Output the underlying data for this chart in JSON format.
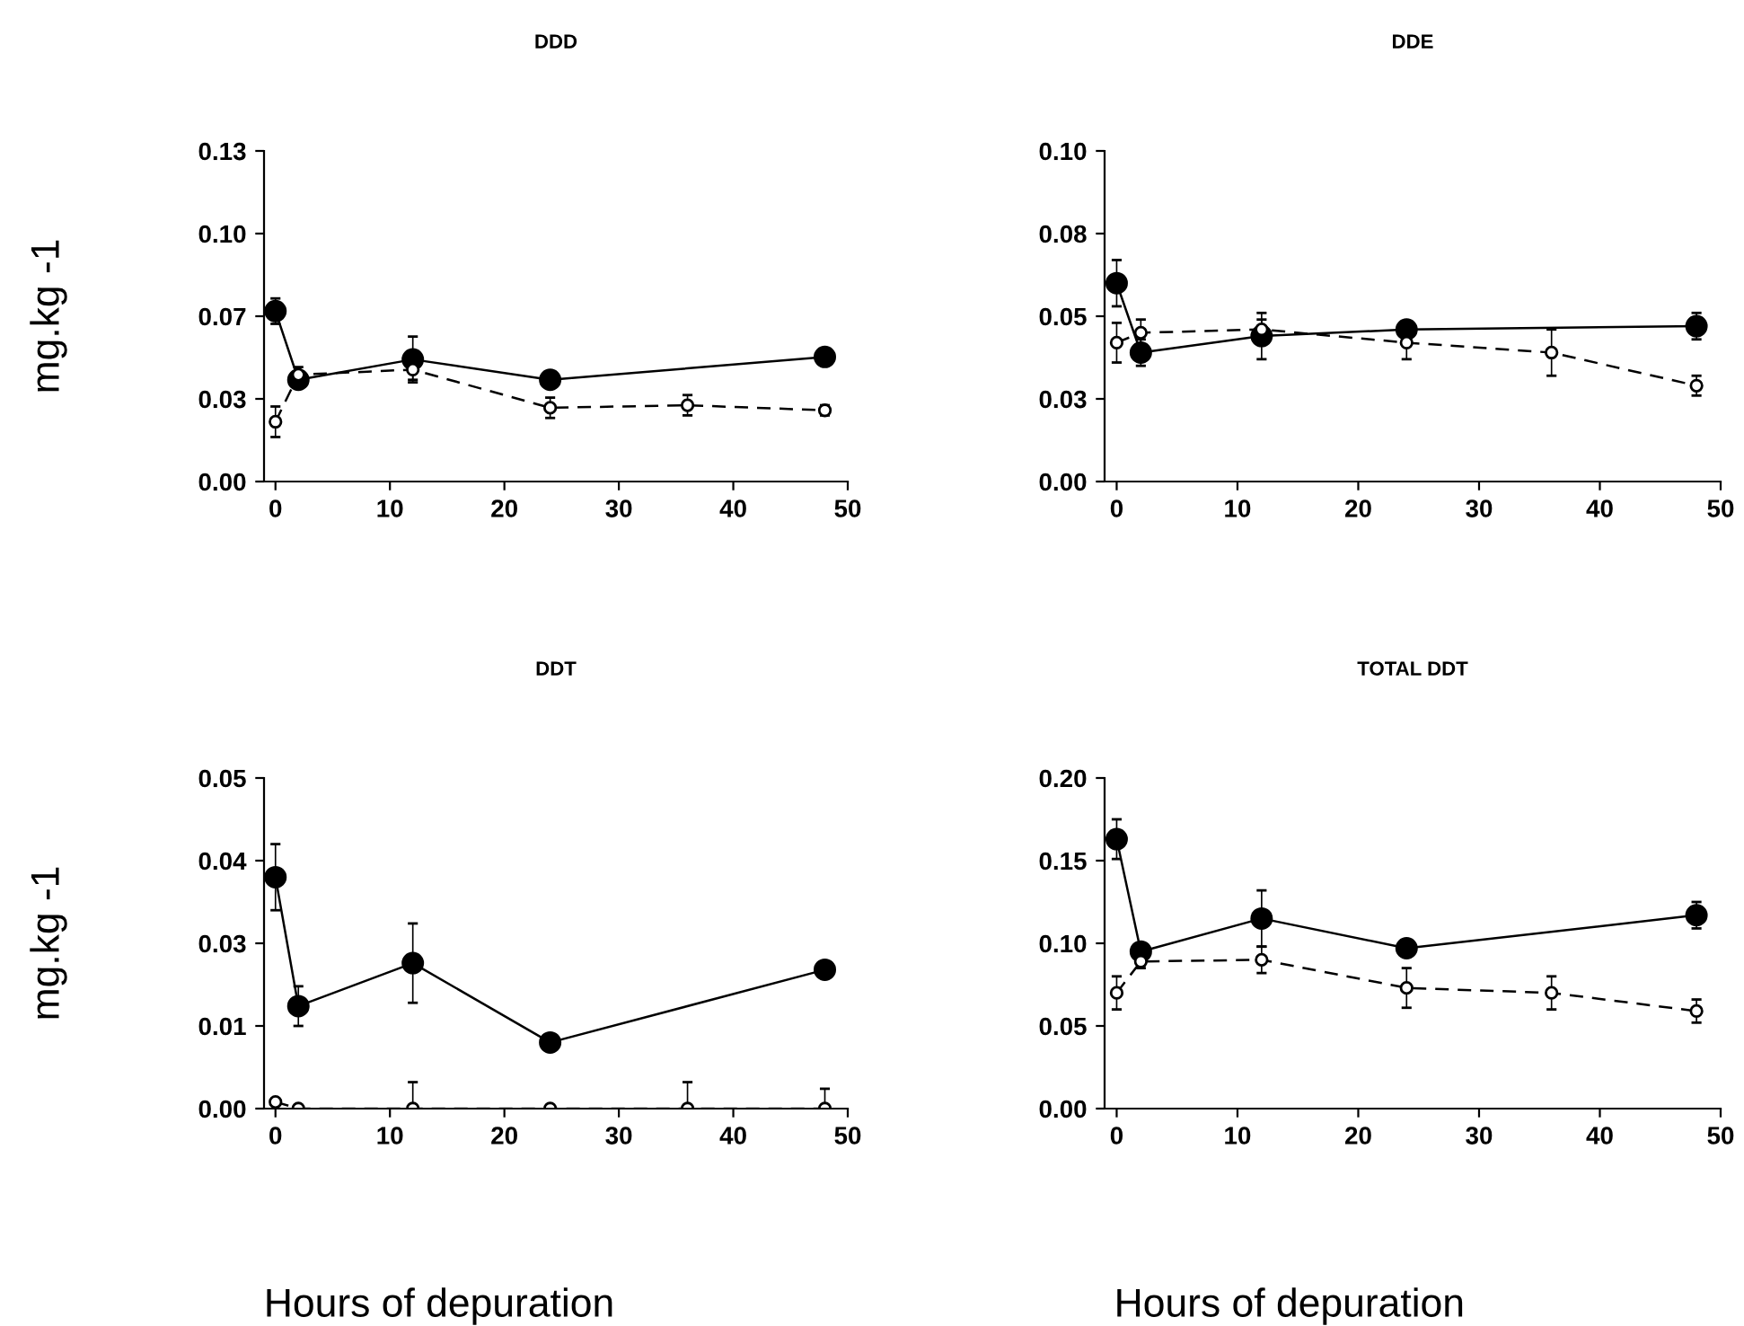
{
  "chart_data": [
    {
      "type": "line",
      "title": "DDD",
      "ylabel": "mg.kg -1",
      "xlim": [
        -1,
        50
      ],
      "xticks": [
        0,
        10,
        20,
        30,
        40,
        50
      ],
      "ylim": [
        0,
        0.13
      ],
      "yticks": [
        {
          "value": 0,
          "label": "0.00"
        },
        {
          "value": 0.0325,
          "label": "0.03"
        },
        {
          "value": 0.065,
          "label": "0.07"
        },
        {
          "value": 0.0975,
          "label": "0.10"
        },
        {
          "value": 0.13,
          "label": "0.13"
        }
      ],
      "grid": false,
      "marker": "circle",
      "series": [
        {
          "color": "#000000",
          "line_style": "solid",
          "x": [
            0,
            2,
            12,
            24,
            48
          ],
          "values": [
            0.067,
            0.04,
            0.048,
            0.04,
            0.049
          ],
          "errors": [
            0.005,
            0.003,
            0.009,
            0.003,
            0.003
          ]
        },
        {
          "color": "#000000",
          "line_style": "dashed",
          "x": [
            0,
            2,
            12,
            24,
            36,
            48
          ],
          "values": [
            0.0235,
            0.042,
            0.044,
            0.029,
            0.03,
            0.028
          ],
          "errors": [
            0.006,
            0.003,
            0.004,
            0.004,
            0.004,
            0.002
          ]
        }
      ]
    },
    {
      "type": "line",
      "title": "DDE",
      "xlim": [
        -1,
        50
      ],
      "xticks": [
        0,
        10,
        20,
        30,
        40,
        50
      ],
      "ylim": [
        0,
        0.1
      ],
      "yticks": [
        {
          "value": 0,
          "label": "0.00"
        },
        {
          "value": 0.025,
          "label": "0.03"
        },
        {
          "value": 0.05,
          "label": "0.05"
        },
        {
          "value": 0.075,
          "label": "0.08"
        },
        {
          "value": 0.1,
          "label": "0.10"
        }
      ],
      "grid": false,
      "marker": "circle",
      "series": [
        {
          "color": "#000000",
          "line_style": "solid",
          "x": [
            0,
            2,
            12,
            24,
            48
          ],
          "values": [
            0.06,
            0.039,
            0.044,
            0.046,
            0.047
          ],
          "errors": [
            0.007,
            0.004,
            0.007,
            0.002,
            0.004
          ]
        },
        {
          "color": "#000000",
          "line_style": "dashed",
          "x": [
            0,
            2,
            12,
            24,
            36,
            48
          ],
          "values": [
            0.042,
            0.045,
            0.046,
            0.042,
            0.039,
            0.029
          ],
          "errors": [
            0.006,
            0.004,
            0.003,
            0.005,
            0.007,
            0.003
          ]
        }
      ]
    },
    {
      "type": "line",
      "title": "DDT",
      "ylabel": "mg.kg -1",
      "xlabel": "Hours of depuration",
      "xlim": [
        -1,
        50
      ],
      "xticks": [
        0,
        10,
        20,
        30,
        40,
        50
      ],
      "ylim": [
        0,
        0.05
      ],
      "yticks": [
        {
          "value": 0,
          "label": "0.00"
        },
        {
          "value": 0.0125,
          "label": "0.01"
        },
        {
          "value": 0.025,
          "label": "0.03"
        },
        {
          "value": 0.0375,
          "label": "0.04"
        },
        {
          "value": 0.05,
          "label": "0.05"
        }
      ],
      "grid": false,
      "marker": "circle",
      "series": [
        {
          "color": "#000000",
          "line_style": "solid",
          "x": [
            0,
            2,
            12,
            24,
            48
          ],
          "values": [
            0.035,
            0.0155,
            0.022,
            0.01,
            0.021
          ],
          "errors": [
            0.005,
            0.003,
            0.006,
            null,
            null
          ]
        },
        {
          "color": "#000000",
          "line_style": "dashed",
          "x": [
            0,
            2,
            12,
            24,
            36,
            48
          ],
          "values": [
            0.001,
            0,
            0,
            0,
            0,
            0
          ],
          "errors": [
            null,
            null,
            0.004,
            null,
            0.004,
            0.003
          ]
        }
      ]
    },
    {
      "type": "line",
      "title": "TOTAL DDT",
      "xlabel": "Hours of depuration",
      "xlim": [
        -1,
        50
      ],
      "xticks": [
        0,
        10,
        20,
        30,
        40,
        50
      ],
      "ylim": [
        0,
        0.2
      ],
      "yticks": [
        {
          "value": 0,
          "label": "0.00"
        },
        {
          "value": 0.05,
          "label": "0.05"
        },
        {
          "value": 0.1,
          "label": "0.10"
        },
        {
          "value": 0.15,
          "label": "0.15"
        },
        {
          "value": 0.2,
          "label": "0.20"
        }
      ],
      "grid": false,
      "marker": "circle",
      "series": [
        {
          "color": "#000000",
          "line_style": "solid",
          "x": [
            0,
            2,
            12,
            24,
            48
          ],
          "values": [
            0.163,
            0.095,
            0.115,
            0.097,
            0.117
          ],
          "errors": [
            0.012,
            0.005,
            0.017,
            0.005,
            0.008
          ]
        },
        {
          "color": "#000000",
          "line_style": "dashed",
          "x": [
            0,
            2,
            12,
            24,
            36,
            48
          ],
          "values": [
            0.07,
            0.089,
            0.09,
            0.073,
            0.07,
            0.059
          ],
          "errors": [
            0.01,
            0.004,
            0.008,
            0.012,
            0.01,
            0.007
          ]
        }
      ]
    }
  ]
}
